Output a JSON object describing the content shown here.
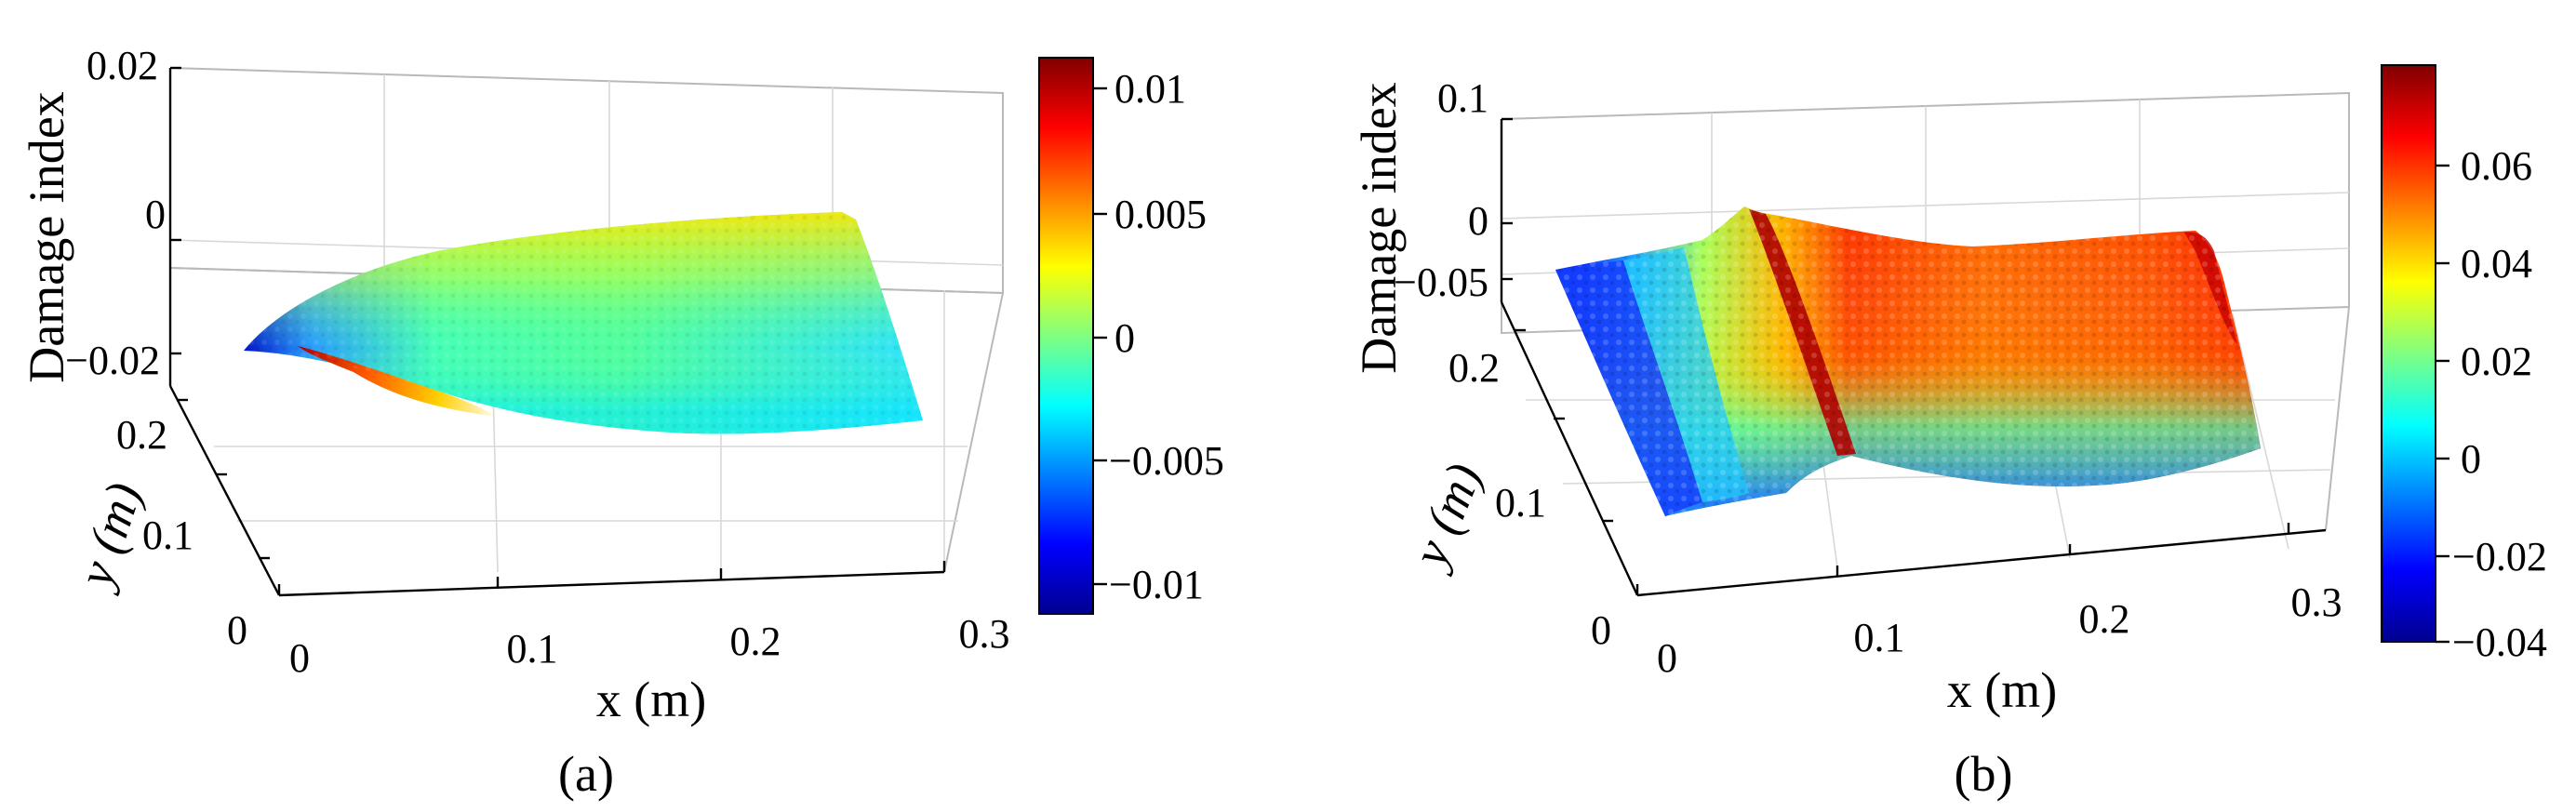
{
  "chart_data": [
    {
      "panel_label": "(a)",
      "type": "surface3d",
      "zlabel": "Damage index",
      "xlabel": "x (m)",
      "ylabel": "y (m)",
      "x_ticks": [
        "0",
        "0.1",
        "0.2",
        "0.3"
      ],
      "y_ticks": [
        "0",
        "0.1",
        "0.2"
      ],
      "z_ticks": [
        "0.02",
        "0",
        "−0.02"
      ],
      "xlim": [
        0,
        0.3
      ],
      "ylim": [
        0,
        0.2
      ],
      "zlim": [
        -0.02,
        0.02
      ],
      "colorbar": {
        "ticks": [
          "0.01",
          "0.005",
          "0",
          "−0.005",
          "−0.01"
        ],
        "range": [
          -0.0115,
          0.0115
        ]
      },
      "colormap": "jet",
      "grid": true
    },
    {
      "panel_label": "(b)",
      "type": "surface3d",
      "zlabel": "Damage index",
      "xlabel": "x (m)",
      "ylabel": "y (m)",
      "x_ticks": [
        "0",
        "0.1",
        "0.2",
        "0.3"
      ],
      "y_ticks": [
        "0",
        "0.1",
        "0.2"
      ],
      "z_ticks": [
        "0.1",
        "0",
        "−0.05"
      ],
      "xlim": [
        0,
        0.3
      ],
      "ylim": [
        0,
        0.2
      ],
      "zlim": [
        -0.05,
        0.1
      ],
      "colorbar": {
        "ticks": [
          "0.06",
          "0.04",
          "0.02",
          "0",
          "−0.02",
          "−0.04"
        ],
        "range": [
          -0.04,
          0.078
        ]
      },
      "colormap": "jet",
      "grid": true
    }
  ],
  "colors": {
    "jet": [
      "#00008f",
      "#0000ff",
      "#00ffff",
      "#80ff80",
      "#ffff00",
      "#ff0000",
      "#800000"
    ]
  }
}
